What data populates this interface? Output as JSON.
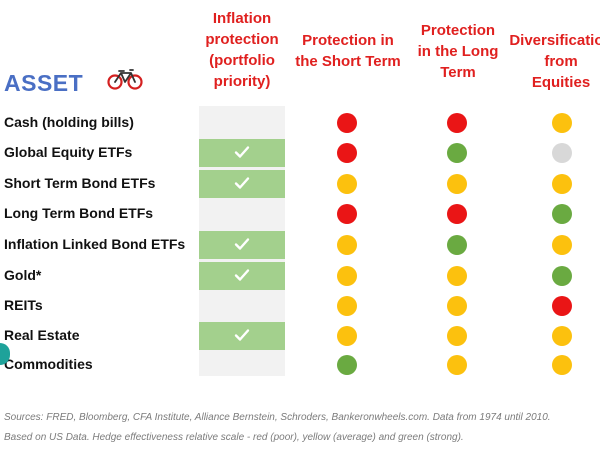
{
  "headers": {
    "col0": "Inflation\nprotection\n(portfolio\npriority)",
    "col1": "Protection in\nthe Short Term",
    "col2": "Protection\nin the Long\nTerm",
    "col3": "Diversification\nfrom\nEquities"
  },
  "asset_title": "ASSET",
  "icons": {
    "title_icon": "bicycle-icon",
    "check_icon": "checkmark-icon"
  },
  "colors": {
    "red": "#ea1516",
    "yellow": "#fcc10e",
    "green": "#6aaa41",
    "grey": "#d8d8d8",
    "header_red": "#e0201f",
    "asset_blue": "#4a6fc4",
    "check_bg": "#a3d08d"
  },
  "rows": [
    {
      "label": "Cash (holding bills)",
      "inflation_check": false,
      "short_term": "red",
      "long_term": "red",
      "diversification": "yellow"
    },
    {
      "label": "Global Equity ETFs",
      "inflation_check": true,
      "short_term": "red",
      "long_term": "green",
      "diversification": "grey"
    },
    {
      "label": "Short Term Bond ETFs",
      "inflation_check": true,
      "short_term": "yellow",
      "long_term": "yellow",
      "diversification": "yellow"
    },
    {
      "label": "Long Term Bond ETFs",
      "inflation_check": false,
      "short_term": "red",
      "long_term": "red",
      "diversification": "green"
    },
    {
      "label": "Inflation Linked Bond ETFs",
      "inflation_check": true,
      "short_term": "yellow",
      "long_term": "green",
      "diversification": "yellow"
    },
    {
      "label": "Gold*",
      "inflation_check": true,
      "short_term": "yellow",
      "long_term": "yellow",
      "diversification": "green"
    },
    {
      "label": "REITs",
      "inflation_check": false,
      "short_term": "yellow",
      "long_term": "yellow",
      "diversification": "red"
    },
    {
      "label": "Real Estate",
      "inflation_check": true,
      "short_term": "yellow",
      "long_term": "yellow",
      "diversification": "yellow"
    },
    {
      "label": "Commodities",
      "inflation_check": false,
      "short_term": "green",
      "long_term": "yellow",
      "diversification": "yellow"
    }
  ],
  "footer": {
    "line1": "Sources: FRED, Bloomberg, CFA Institute, Alliance Bernstein, Schroders, Bankeronwheels.com. Data from 1974 until 2010.",
    "line2": "Based on US Data. Hedge effectiveness relative scale - red (poor), yellow (average) and green (strong)."
  }
}
